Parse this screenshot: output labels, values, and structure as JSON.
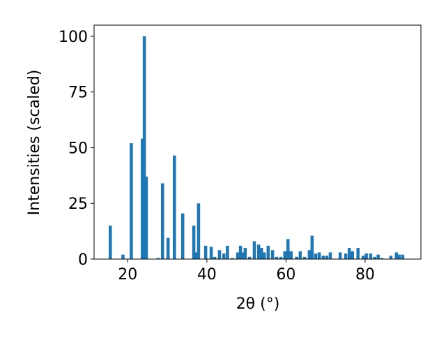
{
  "chart_data": {
    "type": "bar",
    "xlabel": "2θ (°)",
    "ylabel": "Intensities (scaled)",
    "x": [
      15.6,
      18.8,
      20.9,
      23.7,
      24.2,
      24.7,
      27.7,
      28.8,
      30.2,
      31.8,
      33.9,
      36.7,
      37.4,
      37.9,
      39.7,
      41.1,
      42.0,
      43.2,
      44.3,
      45.2,
      46.4,
      47.8,
      48.5,
      49.2,
      49.7,
      50.8,
      52.0,
      53.1,
      53.8,
      54.5,
      55.5,
      56.6,
      57.6,
      58.7,
      59.7,
      60.5,
      61.3,
      62.7,
      63.6,
      64.7,
      65.9,
      66.6,
      67.5,
      68.4,
      69.4,
      70.3,
      71.2,
      73.7,
      75.1,
      76.0,
      76.8,
      78.2,
      79.5,
      80.3,
      81.4,
      82.4,
      83.3,
      84.2,
      86.5,
      87.9,
      88.6,
      89.5
    ],
    "values": [
      15,
      2,
      52,
      54,
      100,
      37,
      0.5,
      34,
      9.5,
      46.5,
      20.5,
      15,
      3,
      25,
      6,
      5.5,
      1,
      4,
      2.5,
      6,
      0.5,
      3,
      6,
      3,
      5,
      1,
      8,
      6.5,
      5,
      3,
      6,
      4,
      1,
      1,
      3.5,
      9,
      3.5,
      1,
      3.5,
      1,
      4,
      10.5,
      2.5,
      3,
      1.5,
      1.5,
      3,
      3,
      2.5,
      5,
      3.5,
      5,
      1.5,
      2.5,
      2.5,
      1,
      2,
      0.5,
      1.5,
      3,
      2,
      2
    ],
    "color": "#1f77b4",
    "xlim": [
      11.5,
      94.1
    ],
    "xticks": [
      20,
      40,
      60,
      80
    ],
    "ylim": [
      0,
      105
    ],
    "yticks": [
      0,
      25,
      50,
      75,
      100
    ]
  }
}
